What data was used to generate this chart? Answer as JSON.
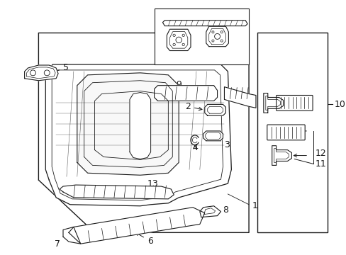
{
  "bg_color": "#ffffff",
  "line_color": "#1a1a1a",
  "fig_width": 4.89,
  "fig_height": 3.6,
  "dpi": 100,
  "font_size": 9,
  "font_size_large": 10
}
